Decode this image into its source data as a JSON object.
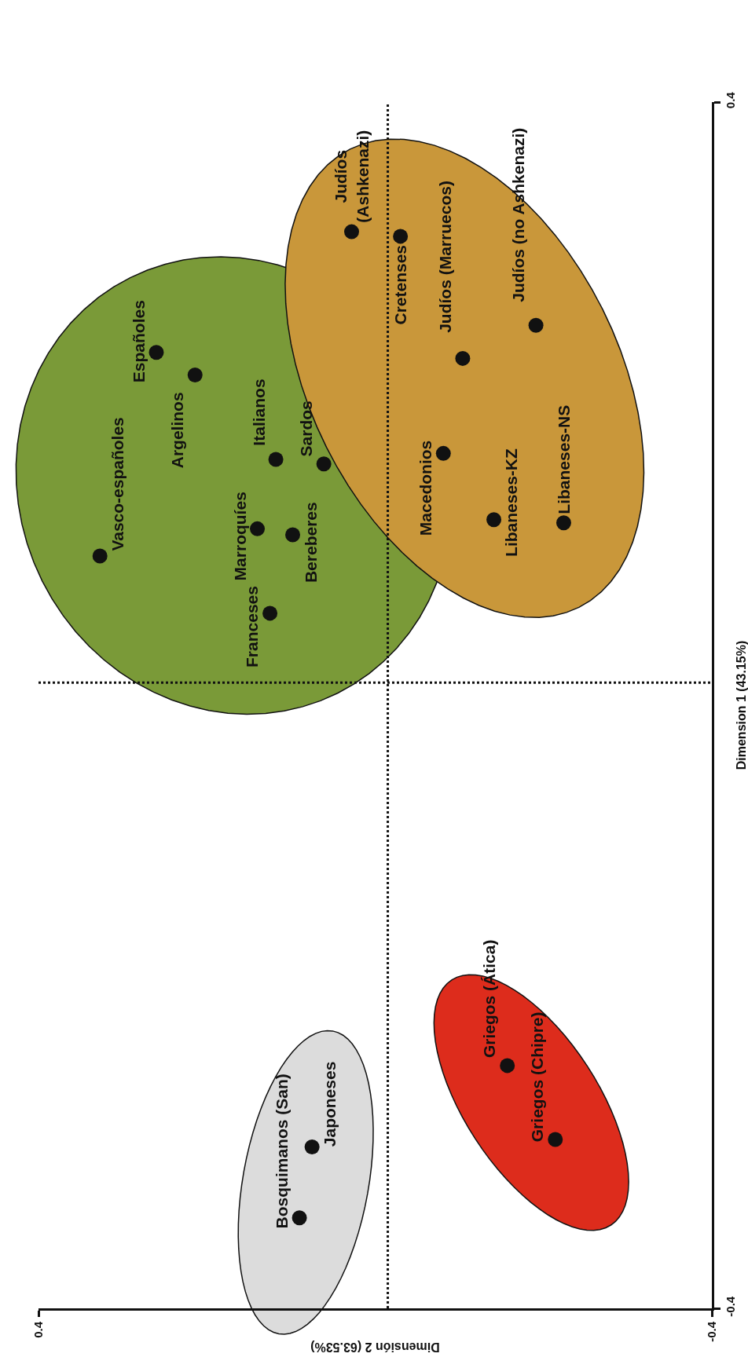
{
  "chart_data": {
    "type": "scatter",
    "xlabel": "Dimensión 2 (63.53%)",
    "ylabel": "Dimension 1 (43.15%)",
    "xlim": [
      0.4,
      -0.4
    ],
    "ylim": [
      -0.4,
      0.4
    ],
    "xticks": [
      0.4,
      -0.4
    ],
    "yticks": [
      -0.4,
      0.4
    ],
    "marker": "circle",
    "series": [
      {
        "color": "#111111",
        "x": [
          0.09,
          0.075
        ],
        "values": [
          -0.34,
          -0.293
        ]
      },
      {
        "color": "#111111",
        "x": [
          -0.157,
          -0.214
        ],
        "values": [
          -0.239,
          -0.288
        ]
      },
      {
        "color": "#111111",
        "x": [
          0.125,
          0.327,
          0.098,
          0.14,
          0.061,
          0.118,
          0.214,
          0.26
        ],
        "values": [
          0.061,
          0.099,
          0.113,
          0.117,
          0.16,
          0.163,
          0.219,
          0.234
        ]
      },
      {
        "color": "#111111",
        "x": [
          -0.081,
          -0.141,
          -0.224,
          -0.03,
          0.028,
          -0.104,
          -0.191
        ],
        "values": [
          0.167,
          0.123,
          0.121,
          0.311,
          0.314,
          0.23,
          0.252
        ]
      }
    ],
    "annotations": [
      {
        "text": "Bosquimanos (San)",
        "x": 0.09,
        "y": -0.34
      },
      {
        "text": "Japoneses",
        "x": 0.075,
        "y": -0.293
      },
      {
        "text": "Griegos (Ática)",
        "x": -0.157,
        "y": -0.239
      },
      {
        "text": "Griegos (Chipre)",
        "x": -0.214,
        "y": -0.288
      },
      {
        "text": "Franceses",
        "x": 0.125,
        "y": 0.061
      },
      {
        "text": "Vasco-españoles",
        "x": 0.327,
        "y": 0.099
      },
      {
        "text": "Bereberes",
        "x": 0.098,
        "y": 0.113
      },
      {
        "text": "Marroquíes",
        "x": 0.14,
        "y": 0.117
      },
      {
        "text": "Sardos",
        "x": 0.061,
        "y": 0.16
      },
      {
        "text": "Italianos",
        "x": 0.118,
        "y": 0.163
      },
      {
        "text": "Argelinos",
        "x": 0.214,
        "y": 0.219
      },
      {
        "text": "Españoles",
        "x": 0.26,
        "y": 0.234
      },
      {
        "text": "Macedonios",
        "x": -0.081,
        "y": 0.167
      },
      {
        "text": "Libaneses-KZ",
        "x": -0.141,
        "y": 0.123
      },
      {
        "text": "Libaneses-NS",
        "x": -0.224,
        "y": 0.121
      },
      {
        "text": "Cretenses",
        "x": -0.03,
        "y": 0.311
      },
      {
        "text": "Judíos\n(Ashkenazi)",
        "x": 0.028,
        "y": 0.314
      },
      {
        "text": "Judíos (Marruecos)",
        "x": -0.104,
        "y": 0.23
      },
      {
        "text": "Judíos (no Ashkenazi)",
        "x": -0.191,
        "y": 0.252
      }
    ],
    "ref_lines": [
      {
        "axis": "x",
        "value": -0.015,
        "line_style": "dotted"
      },
      {
        "axis": "y",
        "value": 0.015,
        "line_style": "dotted"
      }
    ]
  }
}
